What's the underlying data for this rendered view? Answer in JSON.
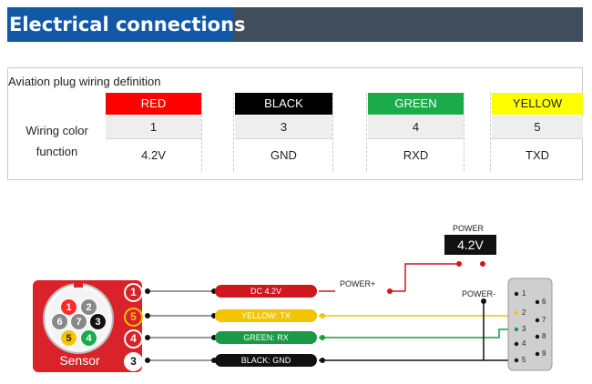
{
  "banner": {
    "title": "Electrical connections"
  },
  "table": {
    "caption": "Aviation plug wiring definition",
    "row_label_1": "Wiring color",
    "row_label_2": "function",
    "columns": [
      {
        "color_name": "RED",
        "bg": "#ff0000",
        "fg": "#ffffff",
        "number": "1",
        "function": "4.2V"
      },
      {
        "color_name": "BLACK",
        "bg": "#000000",
        "fg": "#ffffff",
        "number": "3",
        "function": "GND"
      },
      {
        "color_name": "GREEN",
        "bg": "#1aab4a",
        "fg": "#ffffff",
        "number": "4",
        "function": "RXD"
      },
      {
        "color_name": "YELLOW",
        "bg": "#ffff00",
        "fg": "#222222",
        "number": "5",
        "function": "TXD"
      }
    ]
  },
  "diagram": {
    "sensor_label": "Sensor",
    "sensor_pins": [
      {
        "label": "1",
        "color": "#ff2a2a"
      },
      {
        "label": "2",
        "color": "#888888"
      },
      {
        "label": "3",
        "color": "#111111"
      },
      {
        "label": "4",
        "color": "#1aab4a"
      },
      {
        "label": "5",
        "color": "#f5c400"
      },
      {
        "label": "6",
        "color": "#888888"
      },
      {
        "label": "7",
        "color": "#888888"
      }
    ],
    "wire_numbers": [
      "1",
      "5",
      "4",
      "3"
    ],
    "wires": [
      {
        "label": "DC 4.2V",
        "color": "#d0161e"
      },
      {
        "label": "YELLOW:  TX",
        "color": "#f2c500"
      },
      {
        "label": "GREEN:  RX",
        "color": "#1a9a45"
      },
      {
        "label": "BLACK:  GND",
        "color": "#111111"
      }
    ],
    "power_plus": "POWER+",
    "power_minus": "POWER-",
    "power_title": "POWER",
    "power_value": "4.2V",
    "db_pins": [
      "1",
      "2",
      "3",
      "4",
      "5",
      "6",
      "7",
      "8",
      "9"
    ]
  },
  "colors": {
    "banner_bg": "#3f4d5c",
    "banner_title_bg": "#1159a6",
    "connector_body": "#cfcfcf",
    "sensor_body": "#d9222a"
  }
}
